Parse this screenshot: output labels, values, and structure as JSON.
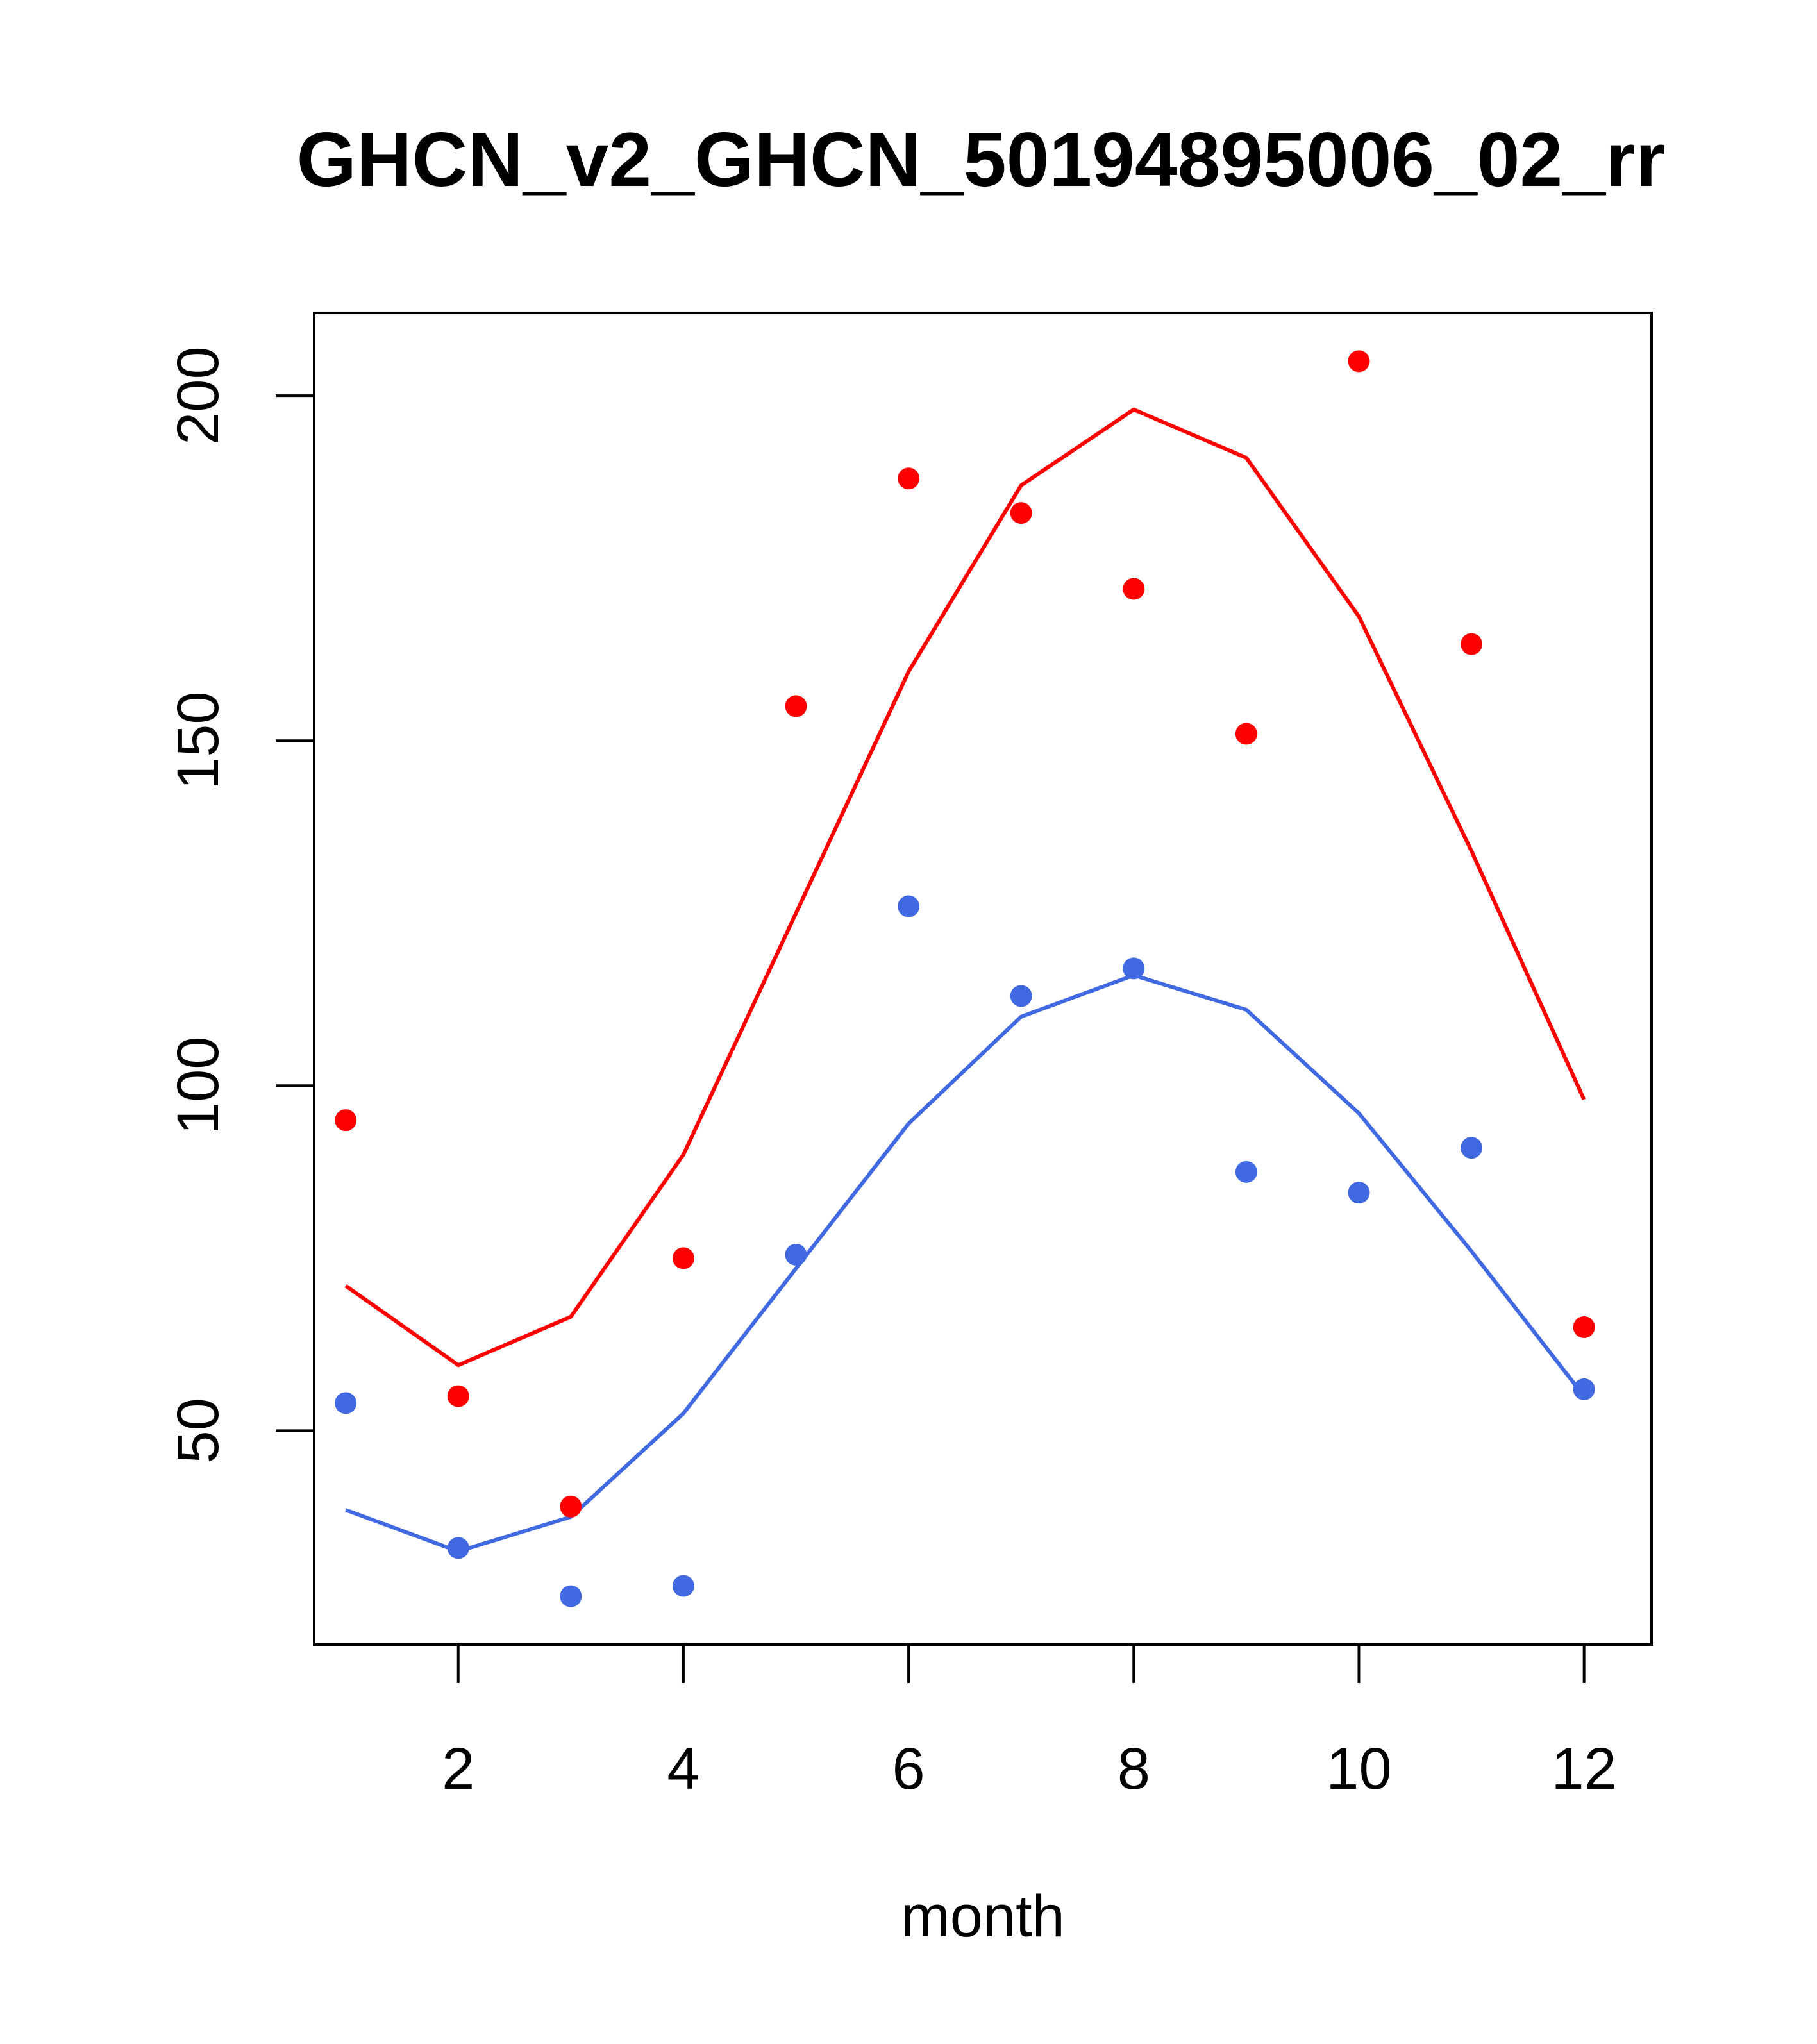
{
  "chart_data": {
    "type": "line",
    "title": "GHCN_v2_GHCN_50194895006_02_rr",
    "xlabel": "month",
    "ylabel": "",
    "xlim": [
      0.72,
      12.6
    ],
    "ylim": [
      19,
      212
    ],
    "x_ticks": [
      2,
      4,
      6,
      8,
      10,
      12
    ],
    "x_tick_labels": [
      "2",
      "4",
      "6",
      "8",
      "10",
      "12"
    ],
    "y_ticks": [
      50,
      100,
      150,
      200
    ],
    "y_tick_labels": [
      "50",
      "100",
      "150",
      "200"
    ],
    "series": [
      {
        "name": "red",
        "color": "#ff0000",
        "points_x": [
          1,
          2,
          3,
          4,
          5,
          6,
          7,
          8,
          9,
          10,
          11,
          12
        ],
        "points_y": [
          95,
          55,
          39,
          75,
          155,
          188,
          183,
          172,
          151,
          205,
          164,
          65
        ],
        "line_x": [
          1,
          2,
          3,
          4,
          5,
          6,
          7,
          8,
          9,
          10,
          11,
          12
        ],
        "line_y": [
          71,
          59.5,
          66.5,
          90,
          125,
          160,
          187,
          198,
          191,
          168,
          134,
          98
        ]
      },
      {
        "name": "blue",
        "color": "#4169e1",
        "points_x": [
          1,
          2,
          3,
          4,
          5,
          6,
          7,
          8,
          9,
          10,
          11,
          12
        ],
        "points_y": [
          54,
          33,
          26,
          27.5,
          75.5,
          126,
          113,
          117,
          87.5,
          84.5,
          91,
          56
        ],
        "line_x": [
          1,
          2,
          3,
          4,
          5,
          6,
          7,
          8,
          9,
          10,
          11,
          12
        ],
        "line_y": [
          38.5,
          32.5,
          37.5,
          52.5,
          73.5,
          94.5,
          110,
          116,
          111,
          96,
          76,
          55
        ]
      }
    ]
  }
}
